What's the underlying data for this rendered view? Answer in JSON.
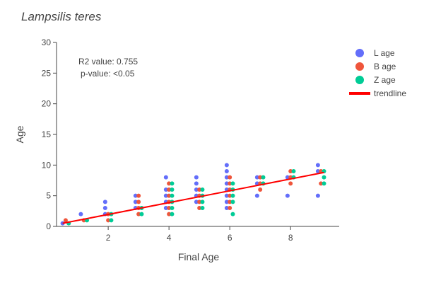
{
  "chart_data": {
    "type": "scatter",
    "title": "Lampsilis teres",
    "xlabel": "Final Age",
    "ylabel": "Age",
    "xlim": [
      0.3,
      9.6
    ],
    "ylim": [
      0,
      30
    ],
    "xticks": [
      2,
      4,
      6,
      8
    ],
    "yticks": [
      0,
      5,
      10,
      15,
      20,
      25,
      30
    ],
    "grid": false,
    "legend_position": "top-right",
    "annotations": [
      "R2 value: 0.755",
      "p-value: <0.05"
    ],
    "series": [
      {
        "name": "L age",
        "color": "#636efa",
        "points": [
          [
            0.5,
            0.5
          ],
          [
            1.1,
            2
          ],
          [
            1.9,
            2
          ],
          [
            1.9,
            3
          ],
          [
            1.9,
            4
          ],
          [
            2.9,
            3
          ],
          [
            2.9,
            4
          ],
          [
            2.9,
            5
          ],
          [
            3.9,
            3
          ],
          [
            3.9,
            4
          ],
          [
            3.9,
            5
          ],
          [
            3.9,
            6
          ],
          [
            3.9,
            8
          ],
          [
            4.9,
            4
          ],
          [
            4.9,
            5
          ],
          [
            4.9,
            6
          ],
          [
            4.9,
            7
          ],
          [
            4.9,
            8
          ],
          [
            5.9,
            3
          ],
          [
            5.9,
            4
          ],
          [
            5.9,
            5
          ],
          [
            5.9,
            6
          ],
          [
            5.9,
            7
          ],
          [
            5.9,
            8
          ],
          [
            5.9,
            9
          ],
          [
            5.9,
            10
          ],
          [
            6.9,
            5
          ],
          [
            6.9,
            7
          ],
          [
            6.9,
            8
          ],
          [
            7.9,
            5
          ],
          [
            7.9,
            8
          ],
          [
            8.9,
            5
          ],
          [
            8.9,
            9
          ],
          [
            8.9,
            10
          ]
        ]
      },
      {
        "name": "B age",
        "color": "#ef553b",
        "points": [
          [
            0.6,
            1
          ],
          [
            1.2,
            1
          ],
          [
            2.0,
            1
          ],
          [
            2.0,
            2
          ],
          [
            3.0,
            2
          ],
          [
            3.0,
            3
          ],
          [
            3.0,
            4
          ],
          [
            3.0,
            5
          ],
          [
            4.0,
            2
          ],
          [
            4.0,
            3
          ],
          [
            4.0,
            4
          ],
          [
            4.0,
            5
          ],
          [
            4.0,
            6
          ],
          [
            4.0,
            7
          ],
          [
            5.0,
            3
          ],
          [
            5.0,
            4
          ],
          [
            5.0,
            5
          ],
          [
            5.0,
            6
          ],
          [
            6.0,
            3
          ],
          [
            6.0,
            4
          ],
          [
            6.0,
            5
          ],
          [
            6.0,
            6
          ],
          [
            6.0,
            7
          ],
          [
            6.0,
            8
          ],
          [
            7.0,
            6
          ],
          [
            7.0,
            7
          ],
          [
            7.0,
            8
          ],
          [
            8.0,
            7
          ],
          [
            8.0,
            8
          ],
          [
            8.0,
            9
          ],
          [
            9.0,
            7
          ],
          [
            9.0,
            9
          ]
        ]
      },
      {
        "name": "Z age",
        "color": "#00cc96",
        "points": [
          [
            0.7,
            0.5
          ],
          [
            1.3,
            1
          ],
          [
            2.1,
            1
          ],
          [
            2.1,
            2
          ],
          [
            3.1,
            2
          ],
          [
            3.1,
            3
          ],
          [
            4.1,
            2
          ],
          [
            4.1,
            3
          ],
          [
            4.1,
            4
          ],
          [
            4.1,
            5
          ],
          [
            4.1,
            6
          ],
          [
            4.1,
            7
          ],
          [
            5.1,
            3
          ],
          [
            5.1,
            4
          ],
          [
            5.1,
            5
          ],
          [
            5.1,
            6
          ],
          [
            6.1,
            2
          ],
          [
            6.1,
            4
          ],
          [
            6.1,
            5
          ],
          [
            6.1,
            6
          ],
          [
            6.1,
            7
          ],
          [
            7.1,
            7
          ],
          [
            7.1,
            8
          ],
          [
            8.1,
            8
          ],
          [
            8.1,
            9
          ],
          [
            9.1,
            7
          ],
          [
            9.1,
            8
          ],
          [
            9.1,
            9
          ]
        ]
      }
    ],
    "trendline": {
      "name": "trendline",
      "color": "#ff0000",
      "x": [
        0.5,
        9.1
      ],
      "y": [
        0.5,
        8.8
      ]
    }
  }
}
